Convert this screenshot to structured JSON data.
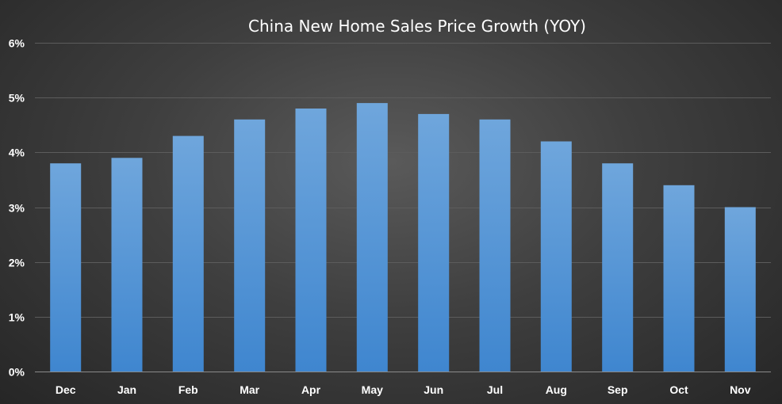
{
  "chart_data": {
    "type": "bar",
    "title": "China New Home Sales Price Growth (YOY)",
    "xlabel": "",
    "ylabel": "",
    "categories": [
      "Dec",
      "Jan",
      "Feb",
      "Mar",
      "Apr",
      "May",
      "Jun",
      "Jul",
      "Aug",
      "Sep",
      "Oct",
      "Nov"
    ],
    "values": [
      3.8,
      3.9,
      4.3,
      4.6,
      4.8,
      4.9,
      4.7,
      4.6,
      4.2,
      3.8,
      3.4,
      3.0
    ],
    "ylim": [
      0,
      6
    ],
    "yticks": [
      0,
      1,
      2,
      3,
      4,
      5,
      6
    ],
    "ytick_labels": [
      "0%",
      "1%",
      "2%",
      "3%",
      "4%",
      "5%",
      "6%"
    ],
    "grid": true,
    "legend": "none",
    "colors": {
      "bar_top": "#6fa6dc",
      "bar_bottom": "#3f86cf",
      "background": "#3f3f3f",
      "text": "#ffffff"
    }
  }
}
